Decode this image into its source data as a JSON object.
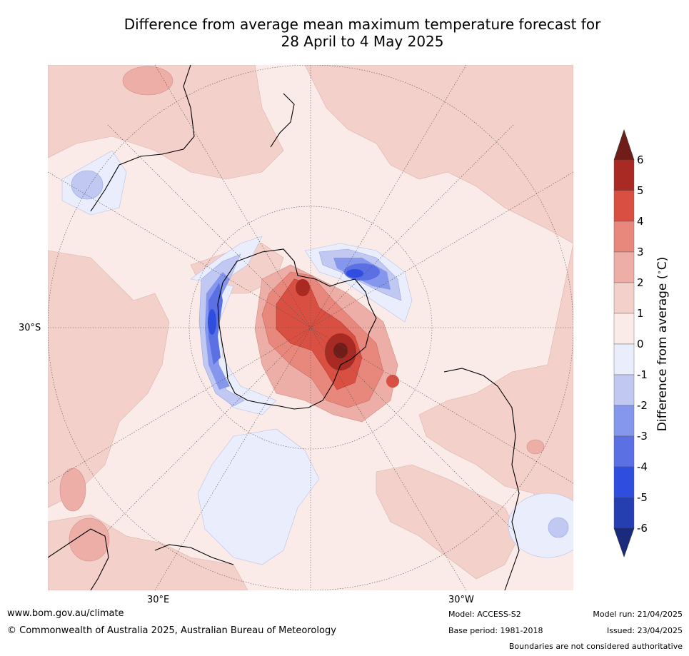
{
  "title": {
    "line1": "Difference from average mean maximum temperature forecast for",
    "line2": "28 April to 4 May 2025"
  },
  "map": {
    "projection": "south-polar stereographic",
    "lat_label": "30°S",
    "lon_labels": [
      "30°E",
      "30°W"
    ],
    "fill_colors": {
      "-1_0": "#eaedfb",
      "-2_-1": "#c1c8f2",
      "-3_-2": "#8597ec",
      "-4_-3": "#5a70e3",
      "-5_-4": "#2f4ee0",
      "-6_-5": "#253eb0",
      "0_1": "#fbebe8",
      "1_2": "#f4d0ca",
      "2_3": "#ecaea6",
      "3_4": "#e8877c",
      "4_5": "#d94f42",
      "5_6": "#a82a23",
      "gt6": "#701c18"
    }
  },
  "colorbar": {
    "label": "Difference from average (°C)",
    "label_text": "Difference from average (",
    "label_unit": "C)",
    "ticks": [
      "6",
      "5",
      "4",
      "3",
      "2",
      "1",
      "0",
      "-1",
      "-2",
      "-3",
      "-4",
      "-5",
      "-6"
    ],
    "bins": [
      {
        "range": "5 to 6",
        "color": "#a82a23"
      },
      {
        "range": "4 to 5",
        "color": "#d94f42"
      },
      {
        "range": "3 to 4",
        "color": "#e8877c"
      },
      {
        "range": "2 to 3",
        "color": "#ecaea6"
      },
      {
        "range": "1 to 2",
        "color": "#f4d0ca"
      },
      {
        "range": "0 to 1",
        "color": "#fbebe8"
      },
      {
        "range": "-1 to 0",
        "color": "#eaedfb"
      },
      {
        "range": "-2 to -1",
        "color": "#c1c8f2"
      },
      {
        "range": "-3 to -2",
        "color": "#8597ec"
      },
      {
        "range": "-4 to -3",
        "color": "#5a70e3"
      },
      {
        "range": "-5 to -4",
        "color": "#2f4ee0"
      },
      {
        "range": "-6 to -5",
        "color": "#253eb0"
      }
    ],
    "over_color": "#701c18",
    "under_color": "#1b2a7c"
  },
  "footer": {
    "website": "www.bom.gov.au/climate",
    "copyright": "© Commonwealth of Australia 2025, Australian Bureau of Meteorology",
    "model": "Model: ACCESS-S2",
    "base_period": "Base period: 1981-2018",
    "model_run": "Model run: 21/04/2025",
    "issued": "Issued: 23/04/2025",
    "disclaimer": "Boundaries are not considered authoritative"
  }
}
